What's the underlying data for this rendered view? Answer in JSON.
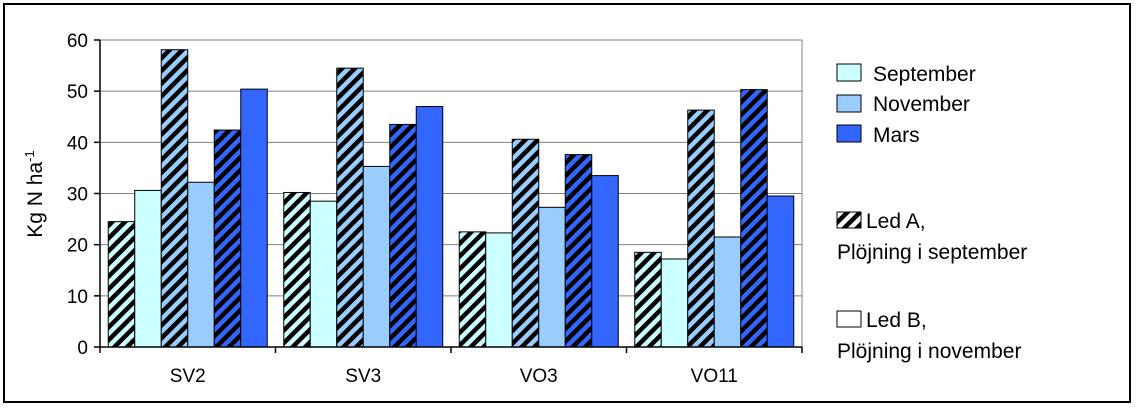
{
  "chart_data": {
    "type": "bar",
    "title": "",
    "xlabel": "",
    "ylabel": "Kg N ha",
    "ylabel_superscript": "-1",
    "ylim": [
      0,
      60
    ],
    "yticks": [
      0,
      10,
      20,
      30,
      40,
      50,
      60
    ],
    "grid": "horizontal",
    "legend_position": "right",
    "categories": [
      "SV2",
      "SV3",
      "VO3",
      "VO11"
    ],
    "series": [
      {
        "name": "September",
        "treatment": "Led A",
        "color": "#ccffff",
        "pattern": "hatched",
        "values": [
          24.5,
          30.2,
          22.5,
          18.5
        ]
      },
      {
        "name": "September",
        "treatment": "Led B",
        "color": "#ccffff",
        "pattern": "solid",
        "values": [
          30.6,
          28.5,
          22.3,
          17.2
        ]
      },
      {
        "name": "November",
        "treatment": "Led A",
        "color": "#99ccff",
        "pattern": "hatched",
        "values": [
          58.1,
          54.5,
          40.6,
          46.3
        ]
      },
      {
        "name": "November",
        "treatment": "Led B",
        "color": "#99ccff",
        "pattern": "solid",
        "values": [
          32.2,
          35.3,
          27.3,
          21.5
        ]
      },
      {
        "name": "Mars",
        "treatment": "Led A",
        "color": "#3366ff",
        "pattern": "hatched",
        "values": [
          42.4,
          43.5,
          37.6,
          50.3
        ]
      },
      {
        "name": "Mars",
        "treatment": "Led B",
        "color": "#3366ff",
        "pattern": "solid",
        "values": [
          50.4,
          47.0,
          33.5,
          29.5
        ]
      }
    ],
    "legend": {
      "months": [
        {
          "label": "September",
          "color": "#ccffff"
        },
        {
          "label": "November",
          "color": "#99ccff"
        },
        {
          "label": "Mars",
          "color": "#3366ff"
        }
      ],
      "treatments": [
        {
          "line1": "Led A,",
          "line2": "Plöjning i september",
          "pattern": "hatched"
        },
        {
          "line1": "Led B,",
          "line2": "Plöjning i november",
          "pattern": "solid"
        }
      ]
    }
  }
}
